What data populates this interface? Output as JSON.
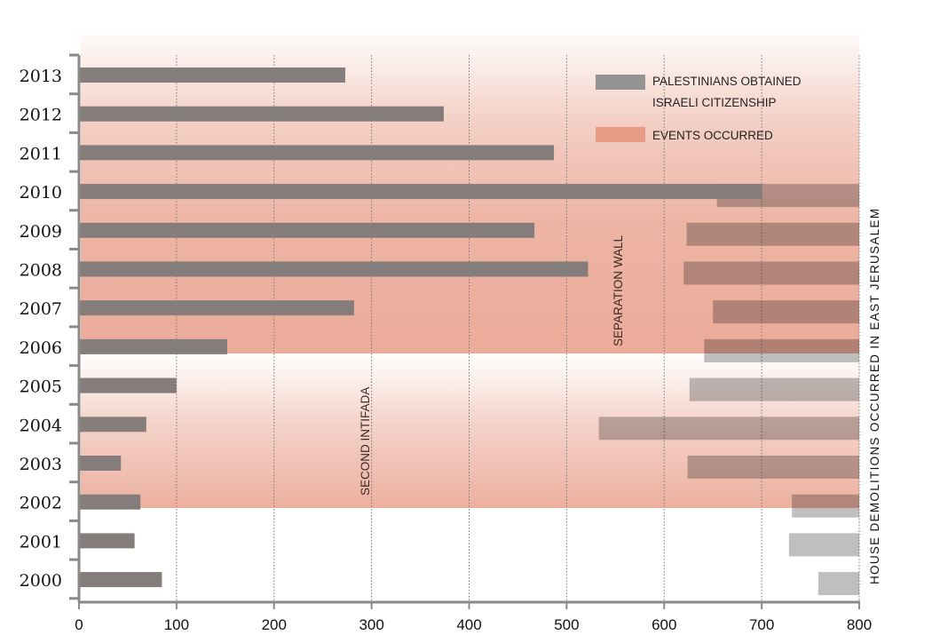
{
  "chart_data": {
    "type": "bar",
    "orientation": "horizontal",
    "title": "",
    "xlabel": "",
    "ylabel": "",
    "xlim": [
      0,
      800
    ],
    "xticks": [
      0,
      100,
      200,
      300,
      400,
      500,
      600,
      700,
      800
    ],
    "grid": "vertical dotted",
    "legend_position": "top-right",
    "categories": [
      "2013",
      "2012",
      "2011",
      "2010",
      "2009",
      "2008",
      "2007",
      "2006",
      "2005",
      "2004",
      "2003",
      "2002",
      "2001",
      "2000"
    ],
    "series": [
      {
        "name": "PALESTINIANS OBTAINED ISRAELI CITIZENSHIP",
        "legend_lines": [
          "PALESTINIANS OBTAINED",
          "ISRAELI CITIZENSHIP"
        ],
        "color": "#857c7c",
        "values": [
          273,
          374,
          487,
          700,
          467,
          522,
          282,
          152,
          100,
          69,
          43,
          63,
          57,
          85
        ]
      },
      {
        "name": "HOUSE DEMOLITIONS OCCURRED IN EAST JERUSALEM",
        "color": "#b4b4b4",
        "drawn_from": "right",
        "values": [
          null,
          null,
          null,
          146,
          177,
          180,
          150,
          159,
          174,
          267,
          176,
          69,
          72,
          42
        ]
      }
    ],
    "events": [
      {
        "name": "SEPARATION WALL",
        "from": "2006",
        "to": "2013"
      },
      {
        "name": "SECOND INTIFADA",
        "from": "2002",
        "to": "2005"
      }
    ],
    "legend_events_label": "EVENTS OCCURRED",
    "event_color": "#eaa794",
    "right_axis_label": "HOUSE DEMOLITIONS OCCURRED IN EAST JERUSALEM"
  }
}
